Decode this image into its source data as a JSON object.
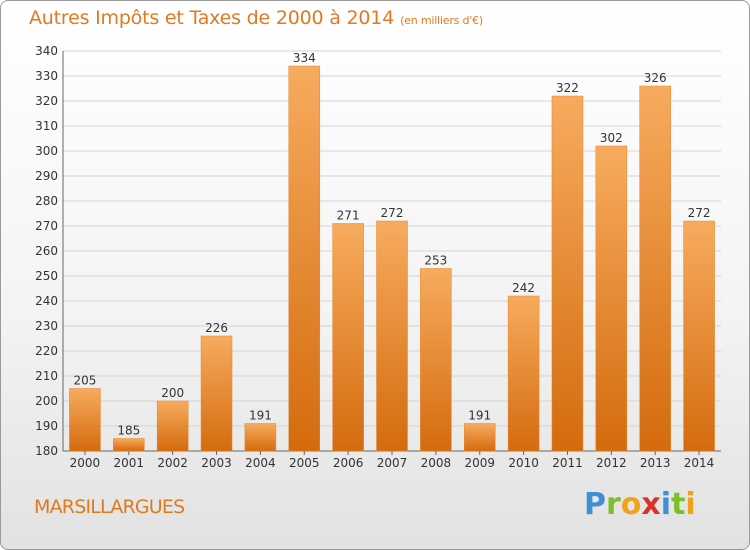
{
  "title": {
    "main": "Autres Impôts et Taxes de 2000 à 2014",
    "unit": "(en milliers d'€)"
  },
  "city": "MARSILLARGUES",
  "logo": {
    "text": "Proxiti"
  },
  "colors": {
    "accent": "#e07a22",
    "bar_light": "#f6a85a",
    "bar_dark": "#d56d10",
    "grid": "#d4d4d4"
  },
  "chart_data": {
    "type": "bar",
    "title": "Autres Impôts et Taxes de 2000 à 2014",
    "subtitle": "(en milliers d'€)",
    "categories": [
      "2000",
      "2001",
      "2002",
      "2003",
      "2004",
      "2005",
      "2006",
      "2007",
      "2008",
      "2009",
      "2010",
      "2011",
      "2012",
      "2013",
      "2014"
    ],
    "values": [
      205,
      185,
      200,
      226,
      191,
      334,
      271,
      272,
      253,
      191,
      242,
      322,
      302,
      326,
      272
    ],
    "ylim": [
      180,
      340
    ],
    "yticks": [
      180,
      190,
      200,
      210,
      220,
      230,
      240,
      250,
      260,
      270,
      280,
      290,
      300,
      310,
      320,
      330,
      340
    ],
    "grid": true,
    "data_labels": true,
    "xlabel": "",
    "ylabel": ""
  }
}
